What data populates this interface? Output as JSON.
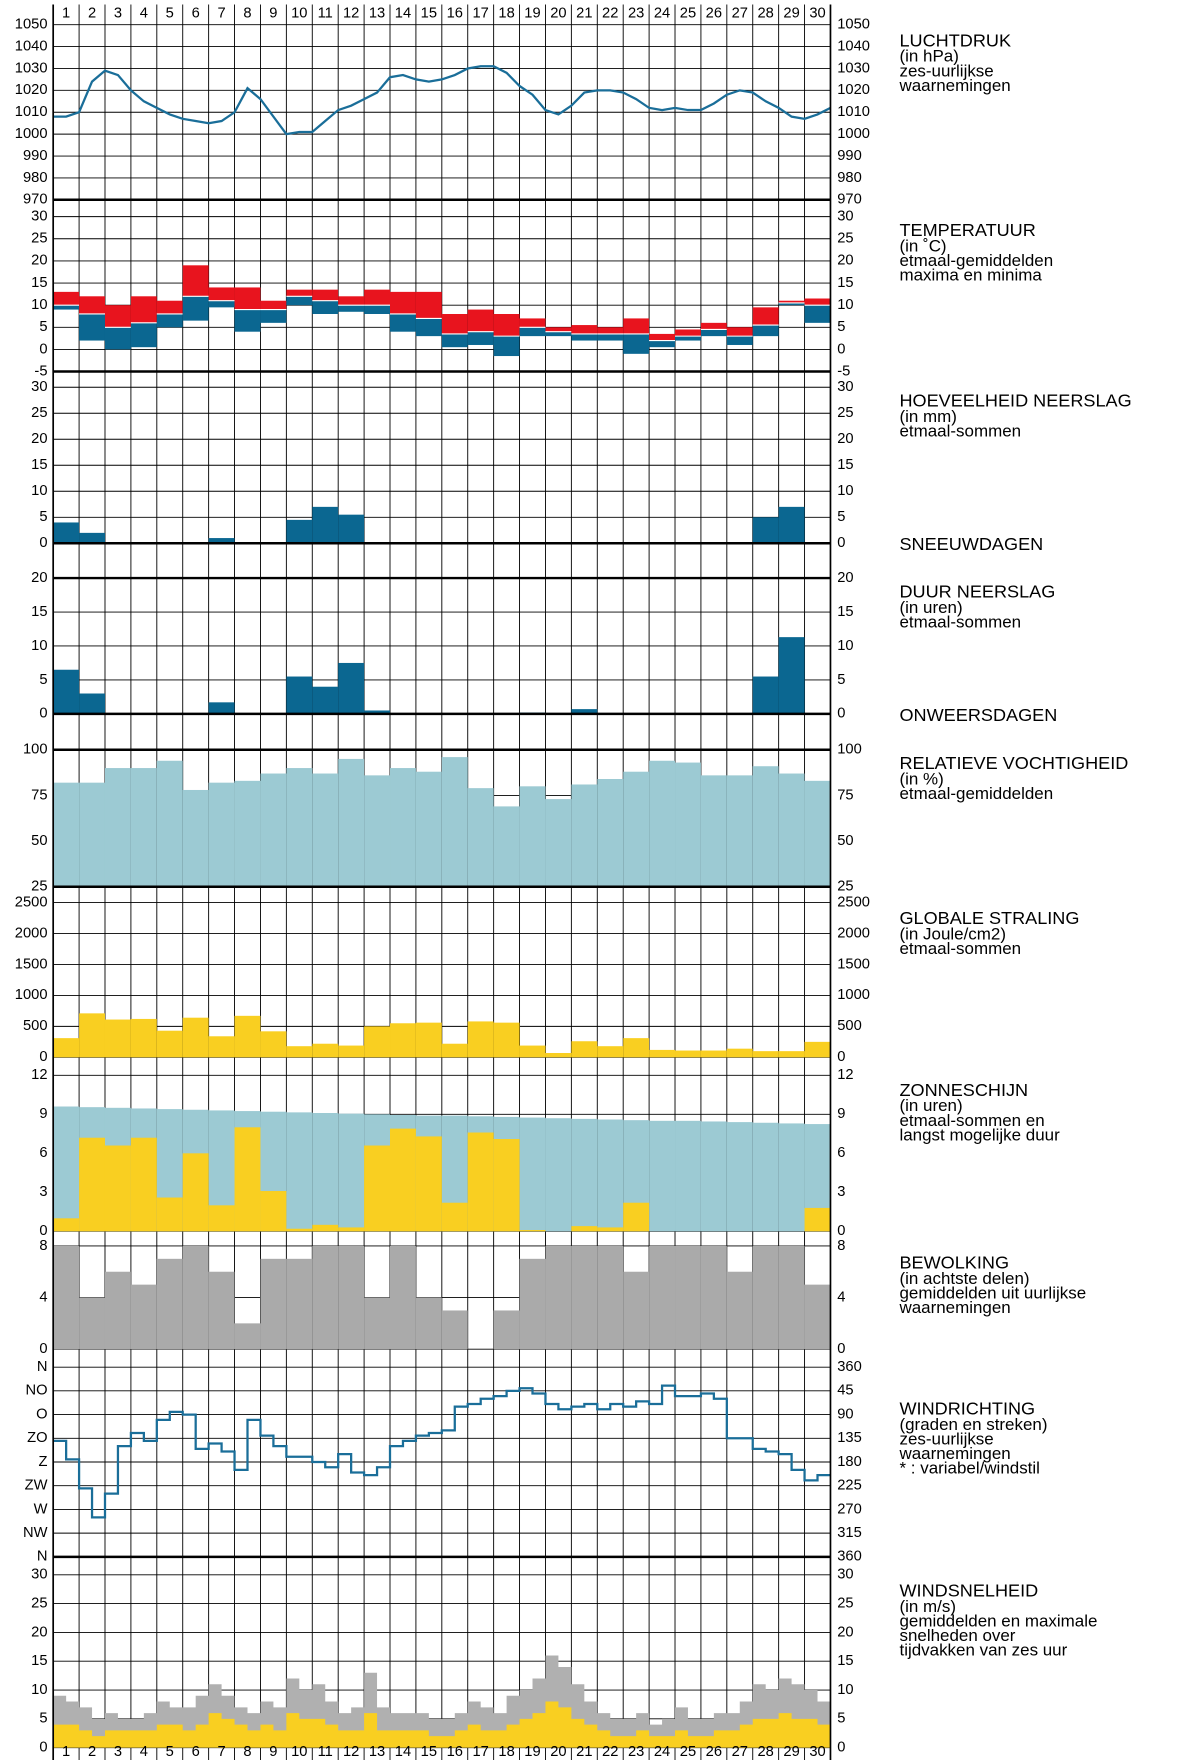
{
  "days": [
    "1",
    "2",
    "3",
    "4",
    "5",
    "6",
    "7",
    "8",
    "9",
    "10",
    "11",
    "12",
    "13",
    "14",
    "15",
    "16",
    "17",
    "18",
    "19",
    "20",
    "21",
    "22",
    "23",
    "24",
    "25",
    "26",
    "27",
    "28",
    "29",
    "30"
  ],
  "chart_data": [
    {
      "type": "line",
      "title": "LUCHTDRUK",
      "notes": [
        "(in hPa)",
        "zes-uurlijkse",
        "waarnemingen"
      ],
      "color": "#1a6e99",
      "ylim": [
        970,
        1050
      ],
      "yticks": [
        970,
        980,
        990,
        1000,
        1010,
        1020,
        1030,
        1040,
        1050
      ],
      "values": [
        1008,
        1008,
        1010,
        1024,
        1029,
        1027,
        1020,
        1015,
        1012,
        1009,
        1007,
        1006,
        1005,
        1006,
        1010,
        1021,
        1016,
        1008,
        1000,
        1001,
        1001,
        1006,
        1011,
        1013,
        1016,
        1019,
        1026,
        1027,
        1025,
        1024,
        1025,
        1027,
        1030,
        1031,
        1031,
        1028,
        1022,
        1018,
        1011,
        1009,
        1013,
        1019,
        1020,
        1020,
        1019,
        1016,
        1012,
        1011,
        1012,
        1011,
        1011,
        1014,
        1018,
        1020,
        1019,
        1015,
        1012,
        1008,
        1007,
        1009,
        1012
      ]
    },
    {
      "type": "range-bar",
      "title": "TEMPERATUUR",
      "notes": [
        "(in ˚C)",
        "etmaal-gemiddelden",
        "maxima en minima"
      ],
      "color_high": "#e8141e",
      "color_low": "#0b6791",
      "ylim": [
        -5,
        30
      ],
      "yticks": [
        -5,
        0,
        5,
        10,
        15,
        20,
        25,
        30
      ],
      "max": [
        13,
        12,
        10,
        12,
        11,
        19,
        14,
        14,
        11,
        13.5,
        13.5,
        12,
        13.5,
        13,
        13,
        8,
        9,
        8,
        7,
        5,
        5.5,
        5,
        7,
        3.5,
        4.5,
        6,
        5,
        9.5,
        11,
        11.5
      ],
      "mean": [
        10,
        8,
        5,
        6,
        8,
        12,
        11,
        9,
        9,
        12,
        11,
        10,
        10,
        8,
        7,
        3.5,
        4,
        3,
        5,
        4,
        3.5,
        3.5,
        3.5,
        2,
        3,
        4.5,
        3,
        5.5,
        10.5,
        10
      ],
      "min": [
        9,
        2,
        0,
        0.5,
        5,
        6.5,
        9.5,
        4,
        6,
        10,
        8,
        8.5,
        8,
        4,
        3,
        0.5,
        1,
        -1.5,
        3,
        3,
        2,
        2,
        -1,
        0.5,
        2,
        3,
        1,
        3,
        10,
        6
      ]
    },
    {
      "type": "bar",
      "title": "HOEVEELHEID NEERSLAG",
      "notes": [
        "(in mm)",
        "etmaal-sommen"
      ],
      "color": "#0b6791",
      "ylim": [
        0,
        30
      ],
      "yticks": [
        0,
        5,
        10,
        15,
        20,
        25,
        30
      ],
      "values": [
        4,
        2,
        0,
        0,
        0,
        0,
        1,
        0,
        0,
        4.5,
        7,
        5.5,
        0.2,
        0,
        0,
        0,
        0,
        0,
        0.2,
        0,
        0.2,
        0,
        0,
        0,
        0,
        0,
        0,
        5,
        7,
        0
      ]
    },
    {
      "type": "label",
      "title": "SNEEUWDAGEN"
    },
    {
      "type": "bar",
      "title": "DUUR NEERSLAG",
      "notes": [
        "(in uren)",
        "etmaal-sommen"
      ],
      "color": "#0b6791",
      "ylim": [
        0,
        20
      ],
      "yticks": [
        0,
        5,
        10,
        15,
        20
      ],
      "values": [
        6.5,
        3,
        0,
        0,
        0,
        0,
        1.7,
        0,
        0,
        5.5,
        4,
        7.5,
        0.5,
        0,
        0,
        0,
        0,
        0,
        0.2,
        0,
        0.7,
        0,
        0,
        0,
        0,
        0,
        0,
        5.5,
        11.3,
        0
      ]
    },
    {
      "type": "label",
      "title": "ONWEERSDAGEN"
    },
    {
      "type": "bar",
      "title": "RELATIEVE VOCHTIGHEID",
      "notes": [
        "(in %)",
        "etmaal-gemiddelden"
      ],
      "color": "#9ccad3",
      "ylim": [
        25,
        100
      ],
      "yticks": [
        25,
        50,
        75,
        100
      ],
      "values": [
        82,
        82,
        90,
        90,
        94,
        78,
        82,
        83,
        87,
        90,
        87,
        95,
        86,
        90,
        88,
        96,
        79,
        69,
        80,
        73,
        81,
        84,
        88,
        94,
        93,
        86,
        86,
        91,
        87,
        83
      ]
    },
    {
      "type": "bar",
      "title": "GLOBALE STRALING",
      "notes": [
        "(in Joule/cm2)",
        "etmaal-sommen"
      ],
      "color": "#f9cf21",
      "ylim": [
        0,
        2500
      ],
      "yticks": [
        0,
        500,
        1000,
        1500,
        2000,
        2500
      ],
      "values": [
        310,
        710,
        610,
        620,
        430,
        640,
        340,
        670,
        420,
        180,
        220,
        190,
        500,
        550,
        560,
        220,
        580,
        560,
        190,
        70,
        260,
        180,
        310,
        120,
        110,
        110,
        140,
        100,
        100,
        250
      ]
    },
    {
      "type": "overlap-bar",
      "title": "ZONNESCHIJN",
      "notes": [
        "(in uren)",
        "etmaal-sommen en",
        "langst mogelijke duur"
      ],
      "ylim": [
        0,
        12
      ],
      "yticks": [
        0,
        3,
        6,
        9,
        12
      ],
      "series": [
        {
          "color": "#9ccad3",
          "values": [
            9.6,
            9.55,
            9.5,
            9.45,
            9.4,
            9.35,
            9.3,
            9.25,
            9.2,
            9.15,
            9.1,
            9.05,
            9.0,
            8.95,
            8.9,
            8.9,
            8.85,
            8.8,
            8.75,
            8.7,
            8.65,
            8.6,
            8.55,
            8.5,
            8.5,
            8.45,
            8.4,
            8.35,
            8.3,
            8.25
          ]
        },
        {
          "color": "#f9cf21",
          "values": [
            1,
            7.2,
            6.6,
            7.2,
            2.6,
            6,
            2,
            8,
            3.1,
            0.2,
            0.5,
            0.3,
            6.6,
            7.9,
            7.3,
            2.2,
            7.6,
            7.1,
            0.1,
            0,
            0.4,
            0.3,
            2.2,
            0,
            0,
            0,
            0,
            0,
            0,
            1.8
          ]
        }
      ]
    },
    {
      "type": "bar",
      "title": "BEWOLKING",
      "notes": [
        "(in achtste delen)",
        "gemiddelden uit uurlijkse",
        "waarnemingen"
      ],
      "color": "#aaaaaa",
      "ylim": [
        0,
        8
      ],
      "yticks": [
        0,
        4,
        8
      ],
      "values": [
        8,
        4,
        6,
        5,
        7,
        8,
        6,
        2,
        7,
        7,
        8,
        8,
        4,
        8,
        4,
        3,
        0,
        3,
        7,
        8,
        8,
        8,
        6,
        8,
        8,
        8,
        6,
        8,
        8,
        5
      ]
    },
    {
      "type": "step",
      "title": "WINDRICHTING",
      "notes": [
        "(graden en streken)",
        "zes-uurlijkse",
        "waarnemingen",
        "* : variabel/windstil"
      ],
      "color": "#1a6e99",
      "ylim": [
        360,
        0
      ],
      "yticks": [
        {
          "value": 0,
          "label": "N"
        },
        {
          "value": 45,
          "label": "NO"
        },
        {
          "value": 90,
          "label": "O"
        },
        {
          "value": 135,
          "label": "ZO"
        },
        {
          "value": 180,
          "label": "Z"
        },
        {
          "value": 225,
          "label": "ZW"
        },
        {
          "value": 270,
          "label": "W"
        },
        {
          "value": 315,
          "label": "NW"
        },
        {
          "value": 360,
          "label": "N"
        }
      ],
      "y2ticks": [
        {
          "value": 0,
          "label": "360"
        },
        45,
        90,
        135,
        180,
        225,
        270,
        315,
        360
      ],
      "values": [
        140,
        175,
        230,
        285,
        240,
        150,
        125,
        140,
        100,
        85,
        90,
        155,
        145,
        160,
        195,
        100,
        130,
        150,
        170,
        170,
        180,
        190,
        165,
        200,
        205,
        190,
        150,
        140,
        130,
        125,
        120,
        75,
        70,
        60,
        55,
        45,
        40,
        50,
        70,
        80,
        75,
        70,
        80,
        70,
        75,
        65,
        70,
        35,
        55,
        55,
        50,
        60,
        135,
        135,
        155,
        160,
        165,
        195,
        215,
        205
      ]
    },
    {
      "type": "step-area",
      "title": "WINDSNELHEID",
      "notes": [
        "(in m/s)",
        "gemiddelden en maximale",
        "snelheden over",
        "tijdvakken van zes uur"
      ],
      "ylim": [
        0,
        30
      ],
      "yticks": [
        0,
        5,
        10,
        15,
        20,
        25,
        30
      ],
      "series": [
        {
          "color": "#b0b0b0",
          "values": [
            9,
            8,
            7,
            5,
            6,
            5,
            5,
            6,
            8,
            7,
            7,
            9,
            11,
            9,
            7,
            6,
            8,
            7,
            12,
            10,
            11,
            8,
            6,
            7,
            13,
            7,
            6,
            6,
            6,
            5,
            5,
            6,
            8,
            7,
            6,
            9,
            10,
            12,
            16,
            14,
            11,
            8,
            6,
            5,
            5,
            6,
            4,
            5,
            7,
            5,
            5,
            6,
            6,
            8,
            11,
            10,
            12,
            11,
            10,
            8
          ]
        },
        {
          "color": "#f9cf21",
          "values": [
            4,
            4,
            3,
            2,
            3,
            3,
            3,
            3,
            4,
            4,
            3,
            4,
            6,
            5,
            4,
            3,
            4,
            3,
            6,
            5,
            5,
            4,
            3,
            3,
            6,
            3,
            3,
            3,
            3,
            2,
            2,
            3,
            4,
            3,
            3,
            4,
            5,
            6,
            8,
            7,
            5,
            4,
            3,
            2,
            2,
            3,
            2,
            2,
            3,
            2,
            2,
            3,
            3,
            4,
            5,
            5,
            6,
            5,
            5,
            4
          ]
        }
      ]
    }
  ]
}
